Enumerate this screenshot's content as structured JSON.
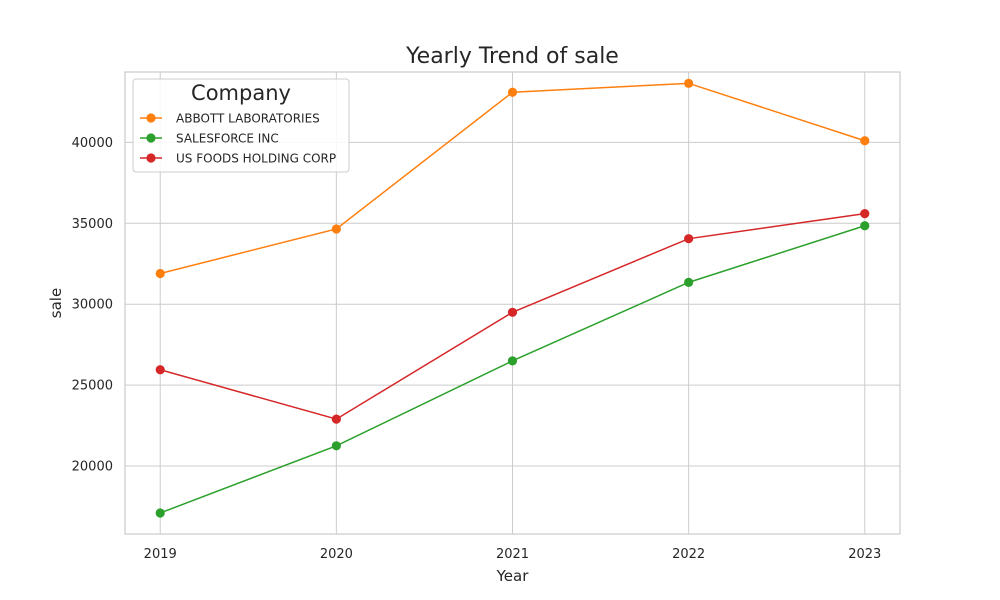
{
  "chart_data": {
    "type": "line",
    "title": "Yearly Trend of sale",
    "xlabel": "Year",
    "ylabel": "sale",
    "x": [
      2019,
      2020,
      2021,
      2022,
      2023
    ],
    "x_ticks": [
      "2019",
      "2020",
      "2021",
      "2022",
      "2023"
    ],
    "xlim": [
      2018.8,
      2023.2
    ],
    "y_ticks": [
      20000,
      25000,
      30000,
      35000,
      40000
    ],
    "ylim": [
      15800,
      44350
    ],
    "grid": true,
    "legend": {
      "title": "Company",
      "position": "top-left"
    },
    "series": [
      {
        "name": "ABBOTT LABORATORIES",
        "color": "#ff7f0e",
        "values": [
          31900,
          34650,
          43100,
          43650,
          40100
        ]
      },
      {
        "name": "SALESFORCE INC",
        "color": "#2ca02c",
        "values": [
          17100,
          21250,
          26500,
          31350,
          34850
        ]
      },
      {
        "name": "US FOODS HOLDING CORP",
        "color": "#d62728",
        "values": [
          25950,
          22900,
          29500,
          34050,
          35600
        ]
      }
    ]
  }
}
